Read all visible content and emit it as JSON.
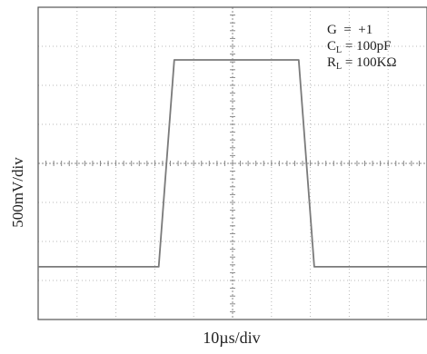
{
  "chart_data": {
    "type": "line",
    "xlabel": "10µs/div",
    "ylabel": "500mV/div",
    "x_divisions": 10,
    "y_divisions": 8,
    "grid": true,
    "annotations": {
      "gain": "G  =  +1",
      "load_cap_prefix": "C",
      "load_cap_sub": "L",
      "load_cap_value": " = 100pF",
      "load_res_prefix": "R",
      "load_res_sub": "L",
      "load_res_value": " = 100KΩ"
    },
    "series": [
      {
        "x": [
          0,
          3.1,
          3.5,
          6.7,
          7.1,
          10
        ],
        "y": [
          -2.65,
          -2.65,
          2.65,
          2.65,
          -2.65,
          -2.65
        ]
      }
    ]
  }
}
